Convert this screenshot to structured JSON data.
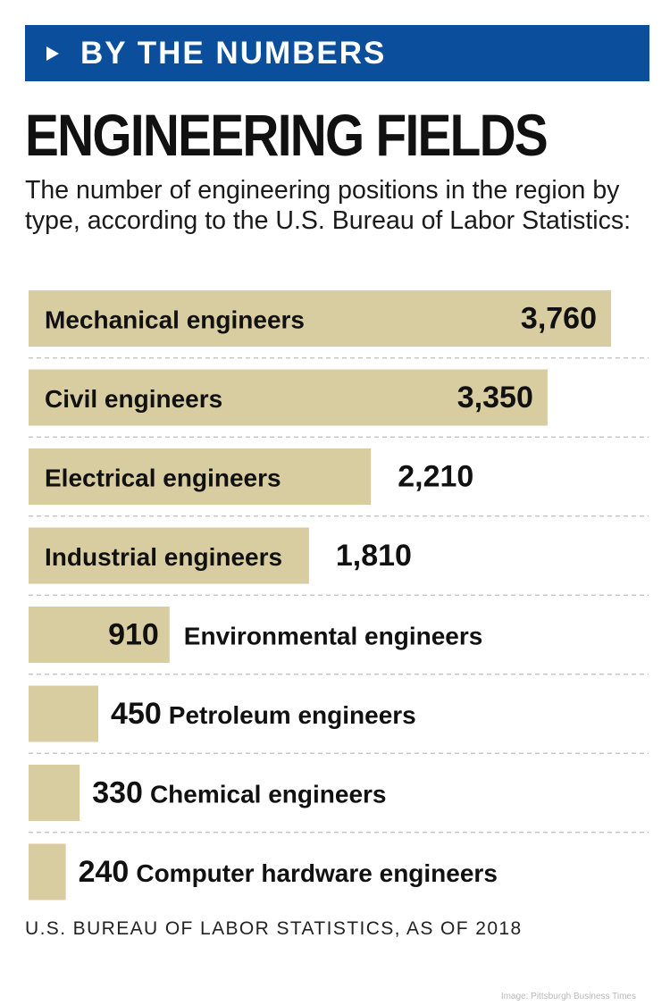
{
  "banner": {
    "label": "BY THE NUMBERS",
    "color": "#0b4f9c"
  },
  "title": "ENGINEERING FIELDS",
  "subtitle": "The number of engineering positions in the region by type, according to the U.S. Bureau of Labor Statistics:",
  "source": "U.S. BUREAU OF LABOR STATISTICS, AS OF 2018",
  "credit": "Image: Pittsburgh Business Times",
  "colors": {
    "bar": "#d8cca1",
    "divider": "#bdbdbd"
  },
  "chart_data": {
    "type": "bar",
    "orientation": "horizontal",
    "categories": [
      "Mechanical engineers",
      "Civil engineers",
      "Electrical engineers",
      "Industrial engineers",
      "Environmental engineers",
      "Petroleum engineers",
      "Chemical engineers",
      "Computer hardware engineers"
    ],
    "values": [
      3760,
      3350,
      2210,
      1810,
      910,
      450,
      330,
      240
    ],
    "value_labels": [
      "3,760",
      "3,350",
      "2,210",
      "1,810",
      "910",
      "450",
      "330",
      "240"
    ],
    "xlim": [
      0,
      3760
    ],
    "grid": false
  }
}
